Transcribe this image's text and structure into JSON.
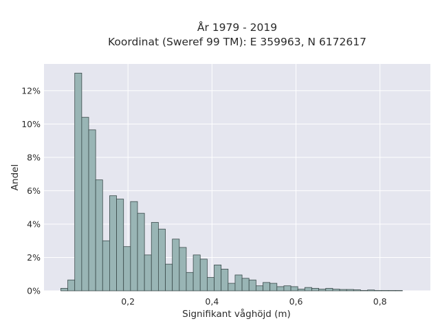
{
  "chart_data": {
    "type": "bar",
    "title_line1": "År 1979 - 2019",
    "title_line2": "Koordinat (Sweref 99 TM): E 359963, N 6172617",
    "xlabel": "Signifikant våghöjd (m)",
    "ylabel": "Andel",
    "xlim": [
      0.0,
      0.92
    ],
    "ylim": [
      0,
      13.6
    ],
    "x_ticks": [
      {
        "value": 0.2,
        "label": "0,2"
      },
      {
        "value": 0.4,
        "label": "0,4"
      },
      {
        "value": 0.6,
        "label": "0,6"
      },
      {
        "value": 0.8,
        "label": "0,8"
      }
    ],
    "y_ticks": [
      {
        "value": 0,
        "label": "0%"
      },
      {
        "value": 2,
        "label": "2%"
      },
      {
        "value": 4,
        "label": "4%"
      },
      {
        "value": 6,
        "label": "6%"
      },
      {
        "value": 8,
        "label": "8%"
      },
      {
        "value": 10,
        "label": "10%"
      },
      {
        "value": 12,
        "label": "12%"
      }
    ],
    "grid": true,
    "bin_start": 0.04,
    "bin_width": 0.0166,
    "values": [
      0.15,
      0.65,
      13.05,
      10.4,
      9.65,
      6.65,
      3.0,
      5.7,
      5.5,
      2.65,
      5.35,
      4.65,
      2.15,
      4.1,
      3.7,
      1.6,
      3.1,
      2.6,
      1.1,
      2.15,
      1.9,
      0.8,
      1.55,
      1.3,
      0.45,
      0.95,
      0.75,
      0.65,
      0.3,
      0.5,
      0.45,
      0.25,
      0.3,
      0.25,
      0.1,
      0.2,
      0.15,
      0.1,
      0.15,
      0.1,
      0.08,
      0.08,
      0.06,
      0.02,
      0.05,
      0.02,
      0.02,
      0.02,
      0.02
    ]
  },
  "colors": {
    "plot_background": "#e5e6ef",
    "bar_fill": "#99b5b5",
    "bar_stroke": "#3a4a4a",
    "grid": "#ffffff"
  }
}
